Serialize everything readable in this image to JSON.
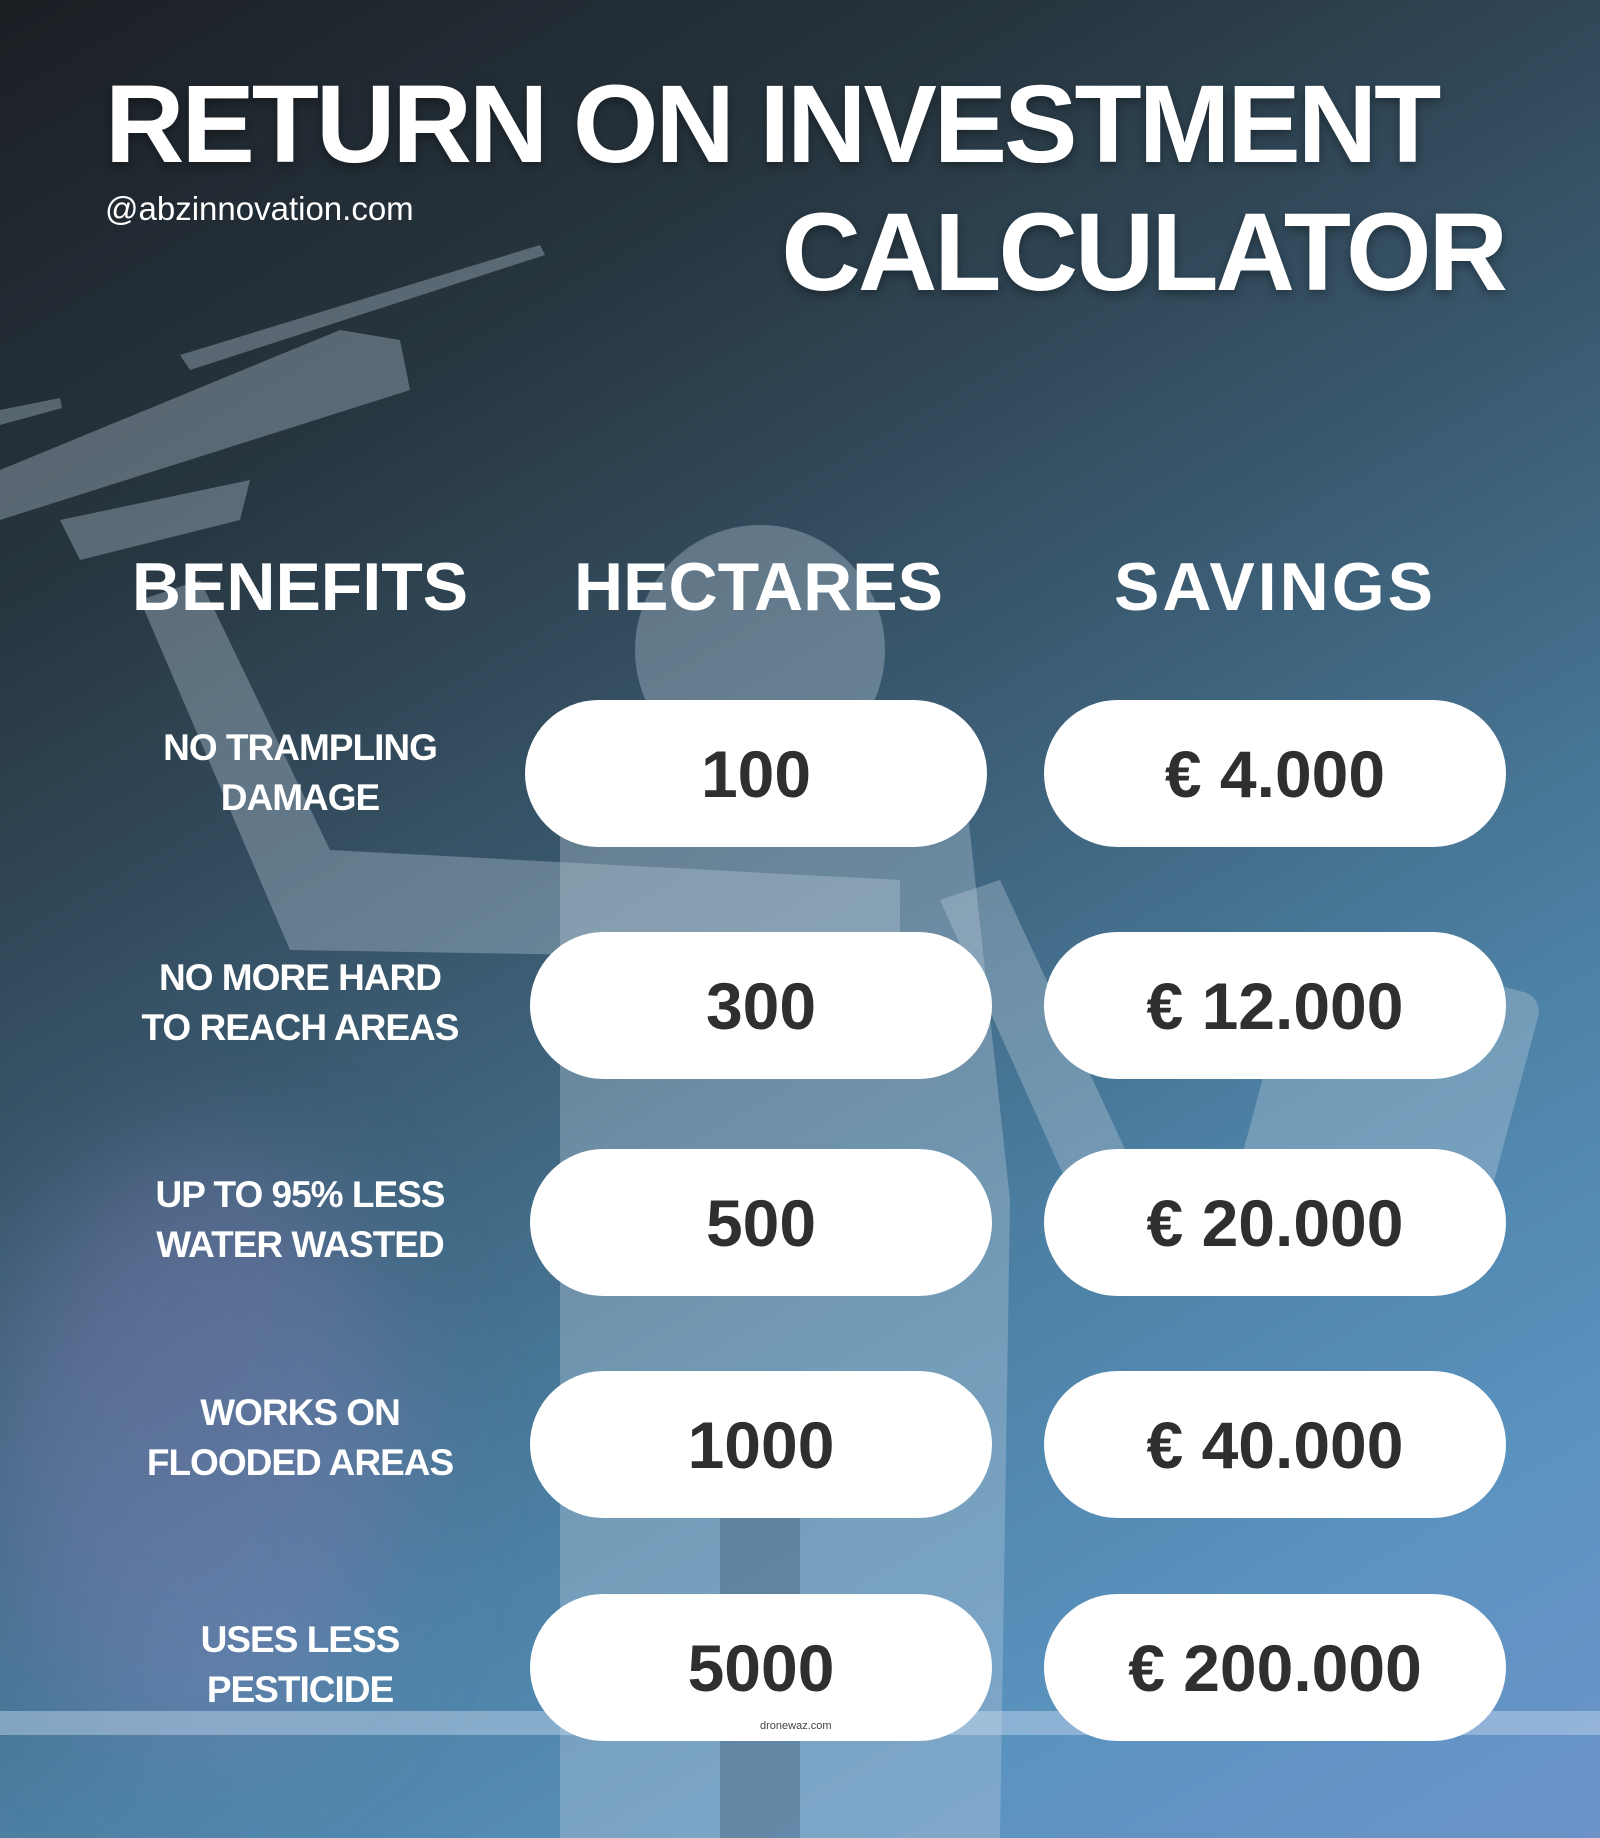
{
  "title": {
    "line1": "RETURN ON INVESTMENT",
    "line2": "CALCULATOR"
  },
  "handle": "@abzinnovation.com",
  "headers": {
    "benefits": "BENEFITS",
    "hectares": "HECTARES",
    "savings": "SAVINGS"
  },
  "rows": [
    {
      "benefit": [
        "NO TRAMPLING",
        "DAMAGE"
      ],
      "hectares": "100",
      "savings": "€ 4.000"
    },
    {
      "benefit": [
        "NO MORE HARD",
        "TO REACH AREAS"
      ],
      "hectares": "300",
      "savings": "€ 12.000"
    },
    {
      "benefit": [
        "UP TO 95% LESS",
        "WATER WASTED"
      ],
      "hectares": "500",
      "savings": "€ 20.000"
    },
    {
      "benefit": [
        "WORKS ON",
        "FLOODED AREAS"
      ],
      "hectares": "1000",
      "savings": "€ 40.000"
    },
    {
      "benefit": [
        "USES LESS",
        "PESTICIDE"
      ],
      "hectares": "5000",
      "savings": "€ 200.000"
    }
  ],
  "watermark": "dronewaz.com",
  "colors": {
    "pill_bg": "#ffffff",
    "pill_text": "#2f2f30",
    "bg_dark": "#1b1f24",
    "bg_blue": "#5b93c0"
  }
}
